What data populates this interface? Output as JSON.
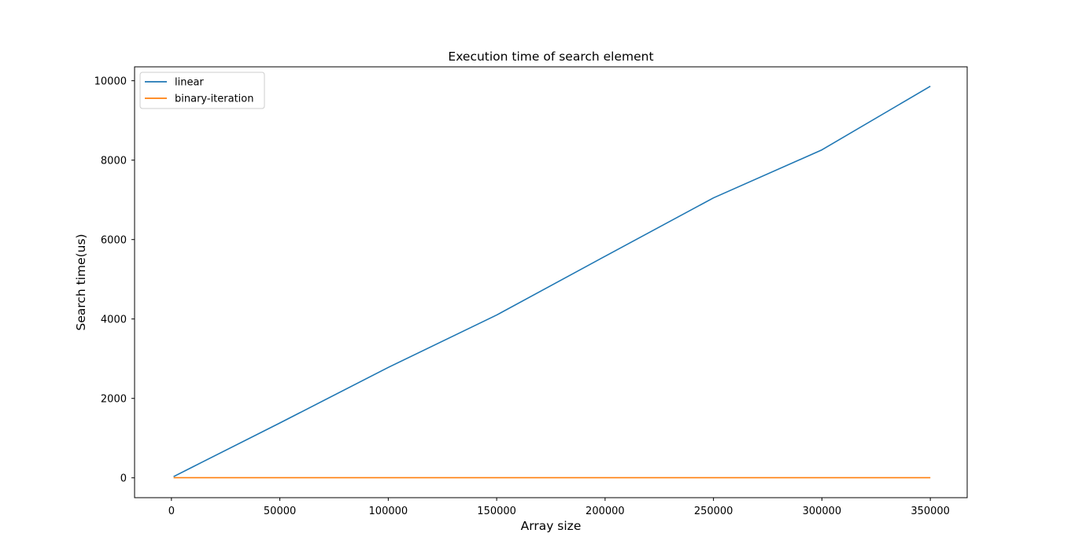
{
  "chart_data": {
    "type": "line",
    "title": "Execution time of search element",
    "xlabel": "Array size",
    "ylabel": "Search time(us)",
    "xlim": [
      -17000,
      367000
    ],
    "ylim": [
      -500,
      10350
    ],
    "xticks": [
      0,
      50000,
      100000,
      150000,
      200000,
      250000,
      300000,
      350000
    ],
    "yticks": [
      0,
      2000,
      4000,
      6000,
      8000,
      10000
    ],
    "grid": false,
    "legend_position": "upper-left",
    "series": [
      {
        "name": "linear",
        "color": "#1f77b4",
        "x": [
          1000,
          10000,
          50000,
          100000,
          150000,
          200000,
          250000,
          300000,
          350000
        ],
        "y": [
          30,
          280,
          1380,
          2780,
          4100,
          5580,
          7050,
          8260,
          9860
        ]
      },
      {
        "name": "binary-iteration",
        "color": "#ff7f0e",
        "x": [
          1000,
          10000,
          50000,
          100000,
          150000,
          200000,
          250000,
          300000,
          350000
        ],
        "y": [
          2,
          2,
          2,
          3,
          3,
          3,
          3,
          3,
          3
        ]
      }
    ]
  }
}
